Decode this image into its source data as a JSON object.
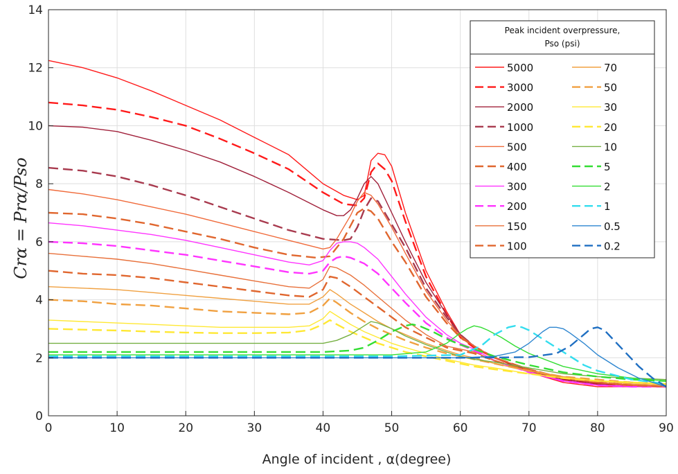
{
  "chart_data": {
    "type": "line",
    "xlabel": "Angle of incident , α(degree)",
    "ylabel": "Crα = Prα/Pso",
    "xlim": [
      0,
      90
    ],
    "ylim": [
      0,
      14
    ],
    "xticks": [
      0,
      10,
      20,
      30,
      40,
      50,
      60,
      70,
      80,
      90
    ],
    "yticks": [
      0,
      2,
      4,
      6,
      8,
      10,
      12,
      14
    ],
    "grid": true,
    "legend": {
      "placement": "top-right",
      "title_line1": "Peak incident  overpressure,",
      "title_line2": "Pso (psi)"
    },
    "series": [
      {
        "name": "5000",
        "color": "#ff1a1a",
        "dash": "solid",
        "x": [
          0,
          5,
          10,
          15,
          20,
          25,
          30,
          35,
          40,
          43,
          45,
          46,
          47,
          48,
          49,
          50,
          52,
          55,
          58,
          60,
          62,
          65,
          70,
          75,
          80,
          85,
          90
        ],
        "y": [
          12.25,
          12.0,
          11.65,
          11.2,
          10.7,
          10.2,
          9.6,
          9.0,
          8.0,
          7.6,
          7.45,
          7.6,
          8.8,
          9.05,
          9.0,
          8.6,
          7.0,
          5.0,
          3.6,
          2.8,
          2.4,
          2.0,
          1.5,
          1.15,
          1.0,
          1.0,
          1.0
        ]
      },
      {
        "name": "3000",
        "color": "#ff1a1a",
        "dash": "dash",
        "x": [
          0,
          5,
          10,
          15,
          20,
          25,
          30,
          35,
          40,
          43,
          45,
          46,
          47,
          48,
          49,
          50,
          52,
          55,
          58,
          60,
          62,
          65,
          70,
          75,
          80,
          85,
          90
        ],
        "y": [
          10.8,
          10.7,
          10.55,
          10.3,
          10.0,
          9.55,
          9.05,
          8.5,
          7.7,
          7.3,
          7.25,
          7.5,
          8.4,
          8.7,
          8.5,
          8.1,
          6.7,
          4.8,
          3.5,
          2.7,
          2.35,
          2.0,
          1.55,
          1.25,
          1.1,
          1.05,
          1.0
        ]
      },
      {
        "name": "2000",
        "color": "#a0203a",
        "dash": "solid",
        "x": [
          0,
          5,
          10,
          15,
          20,
          25,
          30,
          35,
          40,
          42,
          43,
          44,
          45,
          46,
          47,
          48,
          50,
          52,
          55,
          58,
          60,
          62,
          65,
          70,
          75,
          80,
          85,
          90
        ],
        "y": [
          10.0,
          9.95,
          9.8,
          9.5,
          9.15,
          8.75,
          8.25,
          7.7,
          7.1,
          6.9,
          6.9,
          7.1,
          7.5,
          8.0,
          8.25,
          8.0,
          7.0,
          6.0,
          4.6,
          3.5,
          2.8,
          2.4,
          2.0,
          1.55,
          1.25,
          1.1,
          1.05,
          1.0
        ]
      },
      {
        "name": "1000",
        "color": "#a83a4e",
        "dash": "dash",
        "x": [
          0,
          5,
          10,
          15,
          20,
          25,
          30,
          35,
          40,
          43,
          44,
          45,
          46,
          47,
          48,
          50,
          52,
          55,
          58,
          60,
          62,
          65,
          70,
          75,
          80,
          85,
          90
        ],
        "y": [
          8.55,
          8.45,
          8.25,
          7.95,
          7.6,
          7.2,
          6.8,
          6.4,
          6.1,
          6.05,
          6.1,
          6.5,
          7.1,
          7.5,
          7.4,
          6.6,
          5.8,
          4.4,
          3.4,
          2.8,
          2.4,
          2.0,
          1.6,
          1.3,
          1.15,
          1.05,
          1.0
        ]
      },
      {
        "name": "500",
        "color": "#f06a3a",
        "dash": "solid",
        "x": [
          0,
          5,
          10,
          15,
          20,
          25,
          30,
          35,
          40,
          41,
          42,
          44,
          45,
          46,
          47,
          48,
          50,
          52,
          55,
          58,
          60,
          62,
          65,
          70,
          75,
          80,
          85,
          90
        ],
        "y": [
          7.8,
          7.65,
          7.45,
          7.2,
          6.95,
          6.65,
          6.35,
          6.05,
          5.75,
          5.8,
          6.1,
          6.9,
          7.4,
          7.7,
          7.6,
          7.3,
          6.5,
          5.6,
          4.3,
          3.3,
          2.75,
          2.4,
          2.0,
          1.6,
          1.3,
          1.15,
          1.05,
          1.0
        ]
      },
      {
        "name": "400",
        "color": "#e0662e",
        "dash": "dash",
        "x": [
          0,
          5,
          10,
          15,
          20,
          25,
          30,
          35,
          39,
          41,
          43,
          45,
          46,
          47,
          48,
          50,
          52,
          55,
          58,
          60,
          62,
          65,
          70,
          75,
          80,
          85,
          90
        ],
        "y": [
          7.0,
          6.95,
          6.8,
          6.6,
          6.35,
          6.1,
          5.8,
          5.55,
          5.45,
          5.5,
          6.1,
          7.0,
          7.15,
          7.05,
          6.8,
          6.0,
          5.3,
          4.1,
          3.2,
          2.7,
          2.4,
          2.0,
          1.6,
          1.3,
          1.15,
          1.05,
          1.0
        ]
      },
      {
        "name": "300",
        "color": "#ff33ff",
        "dash": "solid",
        "x": [
          0,
          5,
          10,
          15,
          20,
          25,
          30,
          35,
          38,
          40,
          41,
          42,
          43,
          44,
          45,
          46,
          48,
          50,
          52,
          55,
          58,
          60,
          62,
          65,
          70,
          75,
          80,
          85,
          90
        ],
        "y": [
          6.65,
          6.55,
          6.4,
          6.25,
          6.05,
          5.8,
          5.55,
          5.3,
          5.2,
          5.35,
          5.7,
          5.95,
          6.0,
          6.0,
          5.95,
          5.8,
          5.4,
          4.8,
          4.2,
          3.4,
          2.8,
          2.5,
          2.3,
          1.9,
          1.5,
          1.2,
          1.05,
          1.0,
          1.0
        ]
      },
      {
        "name": "200",
        "color": "#ff33ff",
        "dash": "dash",
        "x": [
          0,
          5,
          10,
          15,
          20,
          25,
          30,
          35,
          38,
          40,
          41,
          42,
          43,
          44,
          46,
          48,
          50,
          52,
          55,
          58,
          60,
          62,
          65,
          70,
          75,
          80,
          85,
          90
        ],
        "y": [
          6.0,
          5.95,
          5.85,
          5.7,
          5.55,
          5.35,
          5.15,
          4.95,
          4.9,
          5.0,
          5.3,
          5.45,
          5.5,
          5.45,
          5.25,
          4.9,
          4.4,
          3.9,
          3.2,
          2.7,
          2.45,
          2.25,
          1.9,
          1.5,
          1.2,
          1.05,
          1.0,
          1.0
        ]
      },
      {
        "name": "150",
        "color": "#e8703a",
        "dash": "solid",
        "x": [
          0,
          5,
          10,
          15,
          20,
          25,
          30,
          35,
          38,
          40,
          41,
          42,
          44,
          46,
          48,
          50,
          52,
          55,
          58,
          60,
          62,
          65,
          70,
          75,
          80,
          85,
          90
        ],
        "y": [
          5.6,
          5.5,
          5.4,
          5.25,
          5.05,
          4.85,
          4.65,
          4.45,
          4.4,
          4.7,
          5.15,
          5.1,
          4.85,
          4.5,
          4.1,
          3.7,
          3.3,
          2.8,
          2.4,
          2.3,
          2.2,
          1.9,
          1.55,
          1.3,
          1.15,
          1.05,
          1.0
        ]
      },
      {
        "name": "100",
        "color": "#e0662e",
        "dash": "dash",
        "x": [
          0,
          5,
          10,
          15,
          20,
          25,
          30,
          35,
          38,
          40,
          41,
          42,
          44,
          46,
          48,
          50,
          52,
          55,
          58,
          60,
          62,
          65,
          70,
          75,
          80,
          85,
          90
        ],
        "y": [
          5.0,
          4.9,
          4.85,
          4.75,
          4.6,
          4.45,
          4.3,
          4.15,
          4.1,
          4.35,
          4.8,
          4.75,
          4.45,
          4.1,
          3.75,
          3.4,
          3.05,
          2.7,
          2.35,
          2.25,
          2.15,
          1.9,
          1.55,
          1.3,
          1.15,
          1.05,
          1.0
        ]
      },
      {
        "name": "70",
        "color": "#f0a040",
        "dash": "solid",
        "x": [
          0,
          5,
          10,
          15,
          20,
          25,
          30,
          35,
          38,
          40,
          41,
          42,
          44,
          46,
          48,
          50,
          52,
          55,
          58,
          60,
          62,
          65,
          70,
          75,
          80,
          85,
          90
        ],
        "y": [
          4.45,
          4.4,
          4.35,
          4.25,
          4.15,
          4.05,
          3.95,
          3.85,
          3.85,
          4.1,
          4.35,
          4.2,
          3.85,
          3.55,
          3.25,
          3.0,
          2.8,
          2.5,
          2.25,
          2.1,
          2.0,
          1.8,
          1.55,
          1.35,
          1.2,
          1.1,
          1.05
        ]
      },
      {
        "name": "50",
        "color": "#f0a040",
        "dash": "dash",
        "x": [
          0,
          5,
          10,
          15,
          20,
          25,
          30,
          35,
          38,
          40,
          41,
          42,
          44,
          46,
          48,
          50,
          52,
          55,
          58,
          60,
          62,
          65,
          70,
          75,
          80,
          85,
          90
        ],
        "y": [
          4.0,
          3.95,
          3.85,
          3.8,
          3.7,
          3.6,
          3.55,
          3.5,
          3.55,
          3.8,
          4.05,
          3.9,
          3.55,
          3.25,
          3.0,
          2.8,
          2.6,
          2.35,
          2.15,
          2.05,
          1.95,
          1.8,
          1.55,
          1.35,
          1.25,
          1.15,
          1.1
        ]
      },
      {
        "name": "30",
        "color": "#ffe833",
        "dash": "solid",
        "x": [
          0,
          5,
          10,
          15,
          20,
          25,
          30,
          35,
          38,
          40,
          41,
          42,
          44,
          46,
          48,
          50,
          52,
          55,
          58,
          60,
          62,
          65,
          70,
          75,
          80,
          85,
          90
        ],
        "y": [
          3.3,
          3.25,
          3.2,
          3.15,
          3.1,
          3.05,
          3.05,
          3.05,
          3.1,
          3.35,
          3.6,
          3.45,
          3.15,
          2.9,
          2.7,
          2.5,
          2.35,
          2.15,
          1.95,
          1.85,
          1.75,
          1.65,
          1.45,
          1.3,
          1.2,
          1.15,
          1.1
        ]
      },
      {
        "name": "20",
        "color": "#ffe833",
        "dash": "dash",
        "x": [
          0,
          5,
          10,
          15,
          20,
          25,
          30,
          35,
          38,
          40,
          41,
          42,
          44,
          46,
          48,
          50,
          52,
          55,
          58,
          60,
          62,
          65,
          70,
          75,
          80,
          85,
          90
        ],
        "y": [
          3.0,
          2.97,
          2.94,
          2.9,
          2.87,
          2.85,
          2.85,
          2.87,
          2.95,
          3.15,
          3.3,
          3.15,
          2.9,
          2.7,
          2.5,
          2.35,
          2.2,
          2.05,
          1.9,
          1.8,
          1.7,
          1.6,
          1.45,
          1.3,
          1.2,
          1.15,
          1.1
        ]
      },
      {
        "name": "10",
        "color": "#76b043",
        "dash": "solid",
        "x": [
          0,
          5,
          10,
          15,
          20,
          25,
          30,
          35,
          40,
          42,
          44,
          46,
          47,
          48,
          50,
          52,
          55,
          58,
          60,
          62,
          65,
          70,
          75,
          80,
          85,
          90
        ],
        "y": [
          2.5,
          2.5,
          2.5,
          2.5,
          2.5,
          2.5,
          2.5,
          2.5,
          2.5,
          2.6,
          2.8,
          3.1,
          3.25,
          3.2,
          3.0,
          2.75,
          2.45,
          2.2,
          2.05,
          1.95,
          1.85,
          1.65,
          1.45,
          1.35,
          1.3,
          1.25
        ]
      },
      {
        "name": "5",
        "color": "#33dd33",
        "dash": "dash",
        "x": [
          0,
          10,
          20,
          30,
          40,
          44,
          46,
          48,
          50,
          52,
          53,
          54,
          56,
          58,
          60,
          62,
          65,
          70,
          75,
          80,
          85,
          90
        ],
        "y": [
          2.2,
          2.2,
          2.2,
          2.2,
          2.2,
          2.25,
          2.35,
          2.6,
          2.9,
          3.1,
          3.15,
          3.1,
          2.9,
          2.65,
          2.45,
          2.3,
          2.05,
          1.75,
          1.5,
          1.35,
          1.25,
          1.2
        ]
      },
      {
        "name": "2",
        "color": "#33dd33",
        "dash": "solid",
        "x": [
          0,
          10,
          20,
          30,
          40,
          50,
          55,
          58,
          60,
          61,
          62,
          63,
          64,
          66,
          68,
          70,
          75,
          80,
          85,
          90
        ],
        "y": [
          2.1,
          2.1,
          2.1,
          2.1,
          2.1,
          2.1,
          2.2,
          2.5,
          2.85,
          3.0,
          3.1,
          3.05,
          2.95,
          2.7,
          2.4,
          2.15,
          1.7,
          1.45,
          1.3,
          1.2
        ]
      },
      {
        "name": "1",
        "color": "#33ddee",
        "dash": "dash",
        "x": [
          0,
          10,
          20,
          30,
          40,
          50,
          60,
          63,
          65,
          67,
          68,
          69,
          70,
          72,
          75,
          78,
          80,
          85,
          90
        ],
        "y": [
          2.05,
          2.05,
          2.05,
          2.05,
          2.05,
          2.05,
          2.1,
          2.4,
          2.8,
          3.05,
          3.1,
          3.05,
          2.95,
          2.65,
          2.2,
          1.75,
          1.55,
          1.25,
          1.1
        ]
      },
      {
        "name": "0.5",
        "color": "#2e86d0",
        "dash": "solid",
        "x": [
          0,
          10,
          20,
          30,
          40,
          50,
          60,
          65,
          68,
          70,
          72,
          73,
          74,
          75,
          76,
          78,
          80,
          83,
          86,
          90
        ],
        "y": [
          2.0,
          2.0,
          2.0,
          2.0,
          2.0,
          2.0,
          2.0,
          2.05,
          2.2,
          2.5,
          2.9,
          3.05,
          3.05,
          3.0,
          2.85,
          2.5,
          2.1,
          1.65,
          1.3,
          1.0
        ]
      },
      {
        "name": "0.2",
        "color": "#1f6fc2",
        "dash": "dash",
        "x": [
          0,
          10,
          20,
          30,
          40,
          50,
          60,
          70,
          74,
          76,
          78,
          79,
          80,
          81,
          82,
          84,
          86,
          88,
          90
        ],
        "y": [
          2.0,
          2.0,
          2.0,
          2.0,
          2.0,
          2.0,
          2.0,
          2.02,
          2.15,
          2.4,
          2.8,
          3.0,
          3.05,
          2.95,
          2.7,
          2.2,
          1.7,
          1.3,
          1.0
        ]
      }
    ]
  }
}
